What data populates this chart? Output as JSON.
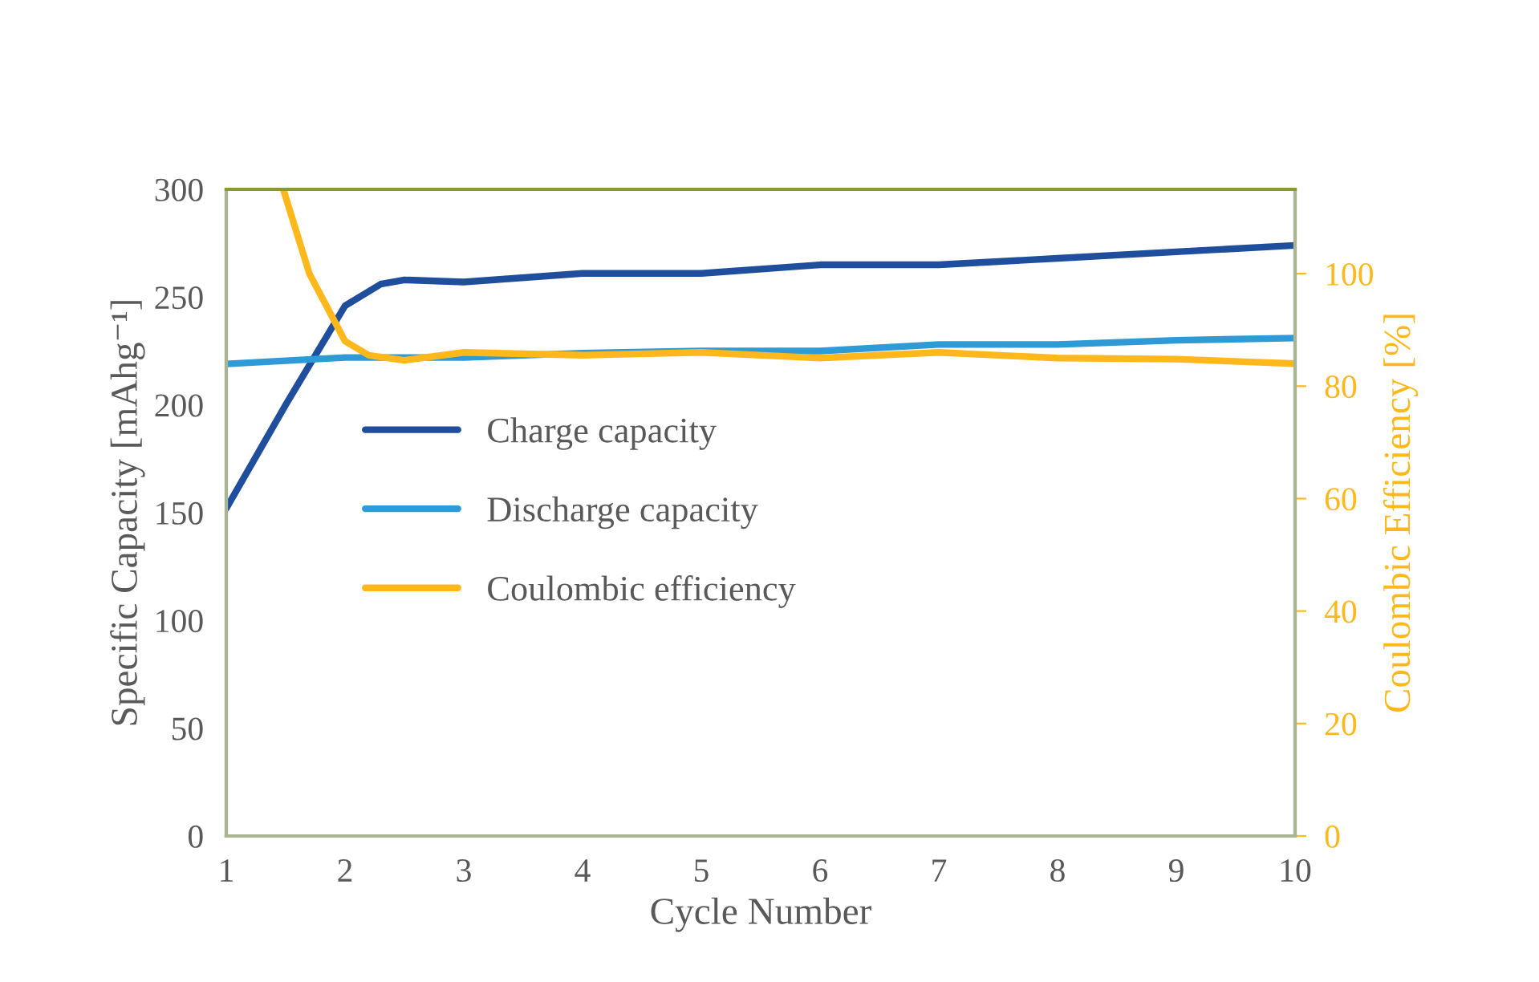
{
  "chart_data": {
    "type": "line",
    "xlabel": "Cycle Number",
    "ylabel": "Specific Capacity [mAhg⁻¹]",
    "y2label": "Coulombic Efficiency [%]",
    "xlim": [
      1,
      10
    ],
    "xticks": [
      1,
      2,
      3,
      4,
      5,
      6,
      7,
      8,
      9,
      10
    ],
    "ylim": [
      0,
      300
    ],
    "yticks": [
      0,
      50,
      100,
      150,
      200,
      250,
      300
    ],
    "y2lim": [
      0,
      115
    ],
    "y2ticks": [
      0,
      20,
      40,
      60,
      80,
      100
    ],
    "legend": "center left",
    "grid": false,
    "marker": "none",
    "line_style": "solid",
    "series": [
      {
        "name": "Charge capacity",
        "color": "#1f4e9c",
        "x": [
          1,
          1.5,
          2,
          2.3,
          2.5,
          3,
          4,
          5,
          6,
          7,
          8,
          9,
          10
        ],
        "values": [
          152,
          200,
          246,
          256,
          258,
          257,
          261,
          261,
          265,
          265,
          268,
          271,
          274
        ]
      },
      {
        "name": "Discharge capacity",
        "color": "#2e9bd6",
        "x": [
          1,
          2,
          3,
          4,
          5,
          6,
          7,
          8,
          9,
          10
        ],
        "values": [
          219,
          222,
          222,
          224,
          225,
          225,
          228,
          228,
          230,
          231
        ]
      },
      {
        "name": "Coulombic efficiency",
        "color": "#ffb81c",
        "axis": "y2",
        "x": [
          1.48,
          1.7,
          2,
          2.2,
          2.5,
          3,
          4,
          5,
          6,
          7,
          8,
          9,
          10
        ],
        "values": [
          115,
          100,
          88,
          85.5,
          84.6,
          86,
          85.5,
          86,
          85,
          86,
          85,
          84.8,
          84
        ]
      }
    ]
  }
}
